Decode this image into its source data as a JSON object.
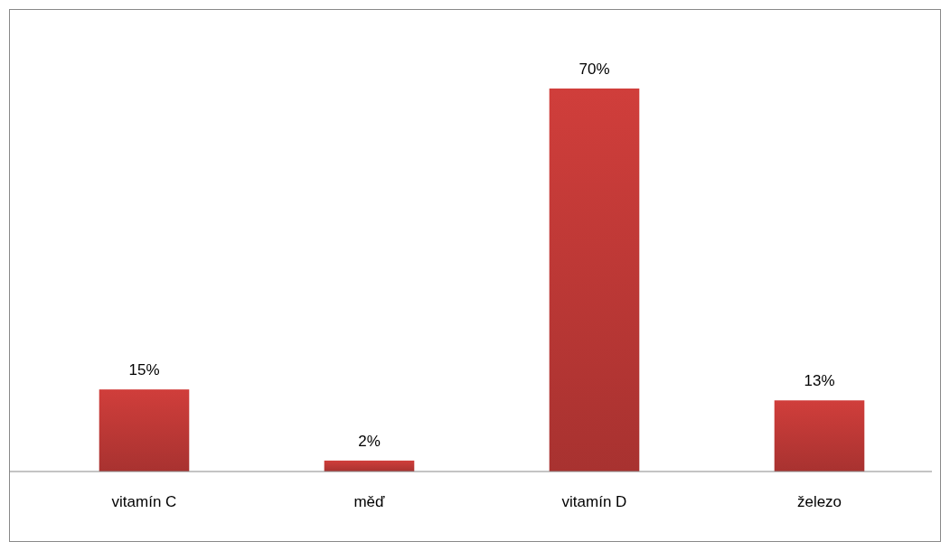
{
  "chart_data": {
    "type": "bar",
    "categories": [
      "vitamín C",
      "měď",
      "vitamín D",
      "železo"
    ],
    "values": [
      15,
      2,
      70,
      13
    ],
    "color": "#d03e3b",
    "data_labels": true,
    "value_labels": [
      "15%",
      "2%",
      "70%",
      "13%"
    ]
  }
}
